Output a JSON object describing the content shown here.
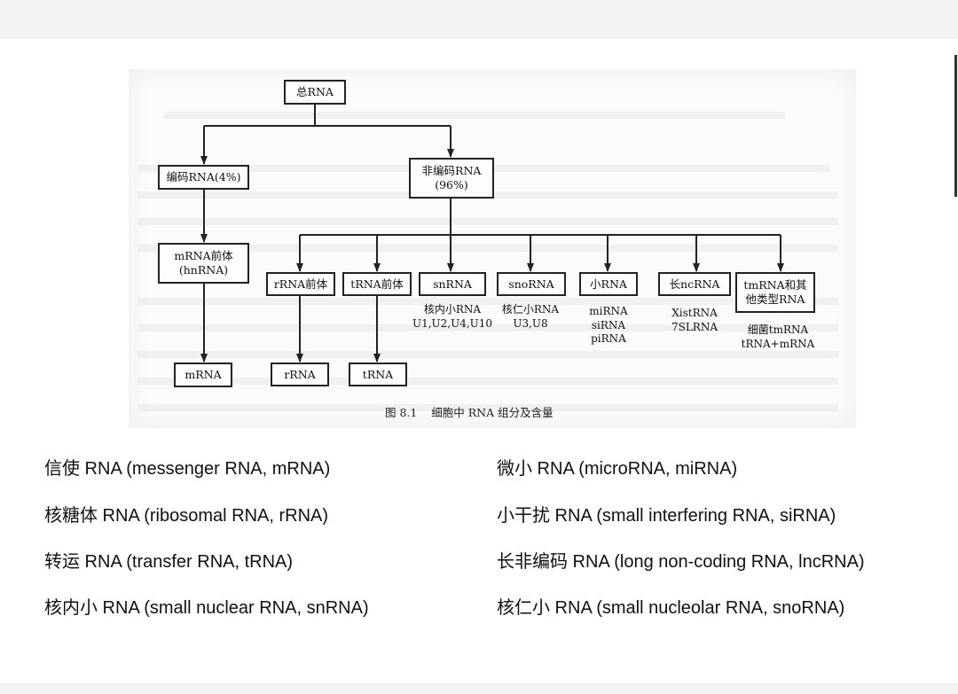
{
  "diagram": {
    "root": "总RNA",
    "coding": "编码RNA(4%)",
    "noncoding": "非编码RNA\n(96%)",
    "mrna_precursor": "mRNA前体\n(hnRNA)",
    "mrna": "mRNA",
    "rrna_precursor": "rRNA前体",
    "trna_precursor": "tRNA前体",
    "snrna": "snRNA",
    "snorna": "snoRNA",
    "small_rna": "小RNA",
    "long_ncrna": "长ncRNA",
    "tmrna_other": "tmRNA和其\n他类型RNA",
    "rrna": "rRNA",
    "trna": "tRNA",
    "snrna_sub": "核内小RNA\nU1,U2,U4,U10",
    "snorna_sub": "核仁小RNA\nU3,U8",
    "small_rna_sub": "miRNA\nsiRNA\npiRNA",
    "long_ncrna_sub": "XistRNA\n7SLRNA",
    "tmrna_sub": "细菌tmRNA\ntRNA+mRNA",
    "caption": "图 8.1    细胞中 RNA 组分及含量"
  },
  "terms": {
    "left": [
      "信使 RNA (messenger RNA, mRNA)",
      "核糖体 RNA (ribosomal RNA, rRNA)",
      "转运 RNA (transfer RNA, tRNA)",
      "核内小 RNA (small nuclear RNA, snRNA)"
    ],
    "right": [
      "微小 RNA (microRNA, miRNA)",
      "小干扰 RNA (small interfering RNA, siRNA)",
      "长非编码 RNA (long non-coding RNA, lncRNA)",
      "核仁小 RNA (small nucleolar RNA, snoRNA)"
    ]
  }
}
